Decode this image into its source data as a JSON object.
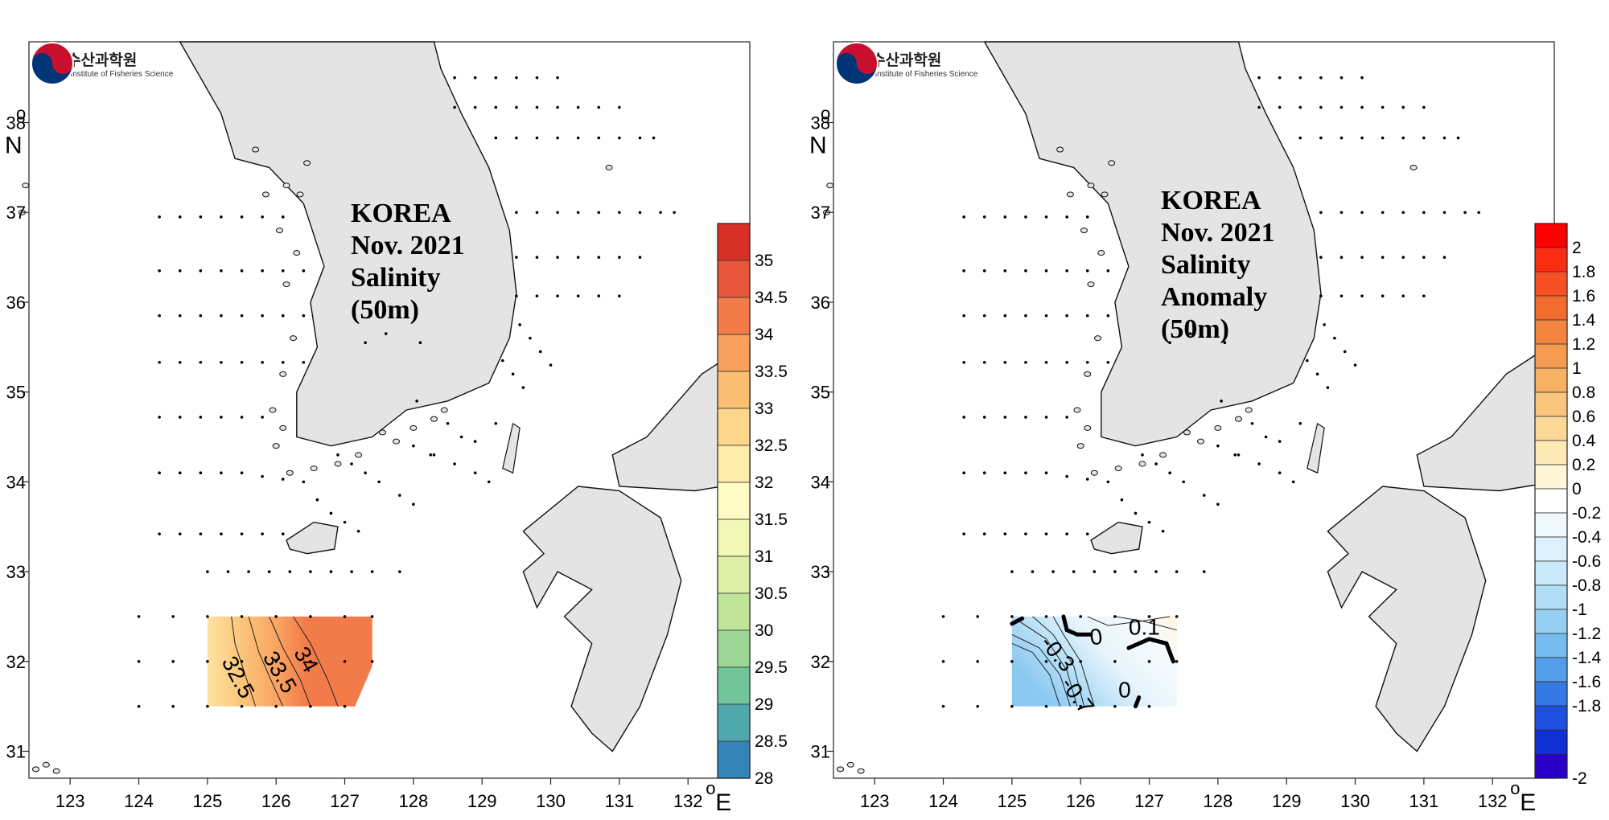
{
  "logo": {
    "korean": "국립수산과학원",
    "english": "National Institute of Fisheries Science",
    "colors": {
      "red": "#c8102e",
      "blue": "#003478"
    }
  },
  "axes": {
    "lon_ticks": [
      "123",
      "124",
      "125",
      "126",
      "127",
      "128",
      "129",
      "130",
      "131",
      "132"
    ],
    "lat_ticks": [
      "31",
      "32",
      "33",
      "34",
      "35",
      "36",
      "37",
      "38"
    ],
    "lon_unit": "E",
    "lat_unit": "N",
    "degree_symbol": "o",
    "lon_range": [
      122.4,
      132.9
    ],
    "lat_range": [
      30.7,
      38.9
    ]
  },
  "left_map": {
    "title_lines": [
      "KOREA",
      "Nov. 2021",
      "Salinity",
      "(50m)"
    ],
    "colorbar_labels": [
      "35",
      "34.5",
      "34",
      "33.5",
      "33",
      "32.5",
      "32",
      "31.5",
      "31",
      "30.5",
      "30",
      "29.5",
      "29",
      "28.5",
      "28"
    ],
    "colorbar_colors": [
      "#d73027",
      "#e8553a",
      "#f27b4a",
      "#f89f5e",
      "#fbbf74",
      "#fdd88c",
      "#feecaa",
      "#fffbc6",
      "#f2f7b8",
      "#dcefa6",
      "#c0e49a",
      "#9dd596",
      "#72c49b",
      "#4fa8ac",
      "#3584b8"
    ],
    "contour_labels": [
      "32.5",
      "33.5",
      "34"
    ]
  },
  "right_map": {
    "title_lines": [
      "KOREA",
      "Nov. 2021",
      "Salinity",
      "Anomaly",
      "(50m)"
    ],
    "colorbar_labels": [
      "2",
      "1.8",
      "1.6",
      "1.4",
      "1.2",
      "1",
      "0.8",
      "0.6",
      "0.4",
      "0.2",
      "0",
      "-0.2",
      "-0.4",
      "-0.6",
      "-0.8",
      "-1",
      "-1.2",
      "-1.4",
      "-1.6",
      "-1.8",
      "-2"
    ],
    "colorbar_colors": [
      "#ff0000",
      "#fb2c12",
      "#f75025",
      "#f36c2f",
      "#f38540",
      "#f59c52",
      "#f7b164",
      "#f9c57c",
      "#fbd896",
      "#fde9b6",
      "#fff6d8",
      "#ffffff",
      "#eef8fd",
      "#dcf1fb",
      "#c9e8f9",
      "#b2ddf6",
      "#95cff2",
      "#76bcee",
      "#539ee9",
      "#3478e3",
      "#1f4fdd",
      "#1030d6",
      "#2a00c8"
    ],
    "contour_labels": [
      "0.1",
      "0",
      "-0.3",
      "-0.7",
      "0"
    ]
  }
}
